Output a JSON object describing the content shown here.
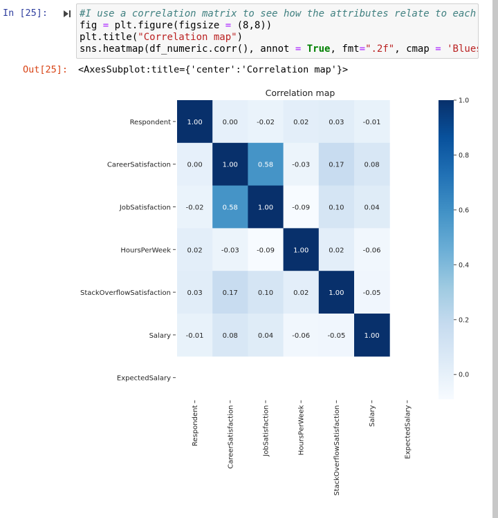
{
  "cell": {
    "in_prompt": "In [25]:",
    "out_prompt": "Out[25]:",
    "code": {
      "line1": "#I use a correlation matrix to see how the attributes relate to each",
      "line2_a": "fig ",
      "line2_b": "=",
      "line2_c": " plt.figure(figsize ",
      "line2_d": "=",
      "line2_e": " (8,8))",
      "line3_a": "plt.title(",
      "line3_b": "\"Correlation map\"",
      "line3_c": ")",
      "line4_a": "sns.heatmap(df_numeric.corr(), annot ",
      "line4_b": "=",
      "line4_c": " ",
      "line4_d": "True",
      "line4_e": ", fmt",
      "line4_f": "=",
      "line4_g": "\".2f\"",
      "line4_h": ", cmap ",
      "line4_i": "=",
      "line4_j": " 'Blues'"
    },
    "output_text": "<AxesSubplot:title={'center':'Correlation map'}>"
  },
  "chart_data": {
    "type": "heatmap",
    "title": "Correlation map",
    "row_labels": [
      "Respondent",
      "CareerSatisfaction",
      "JobSatisfaction",
      "HoursPerWeek",
      "StackOverflowSatisfaction",
      "Salary",
      "ExpectedSalary"
    ],
    "col_labels": [
      "Respondent",
      "CareerSatisfaction",
      "JobSatisfaction",
      "HoursPerWeek",
      "StackOverflowSatisfaction",
      "Salary",
      "ExpectedSalary"
    ],
    "values": [
      [
        1.0,
        -0.0,
        -0.02,
        0.02,
        0.03,
        -0.01,
        null
      ],
      [
        -0.0,
        1.0,
        0.58,
        -0.03,
        0.17,
        0.08,
        null
      ],
      [
        -0.02,
        0.58,
        1.0,
        -0.09,
        0.1,
        0.04,
        null
      ],
      [
        0.02,
        -0.03,
        -0.09,
        1.0,
        0.02,
        -0.06,
        null
      ],
      [
        0.03,
        0.17,
        0.1,
        0.02,
        1.0,
        -0.05,
        null
      ],
      [
        -0.01,
        0.08,
        0.04,
        -0.06,
        -0.05,
        1.0,
        null
      ],
      [
        null,
        null,
        null,
        null,
        null,
        null,
        null
      ]
    ],
    "colorbar": {
      "min": -0.09,
      "max": 1.0,
      "ticks": [
        0.0,
        0.2,
        0.4,
        0.6,
        0.8,
        1.0
      ],
      "cmap": "Blues"
    }
  }
}
